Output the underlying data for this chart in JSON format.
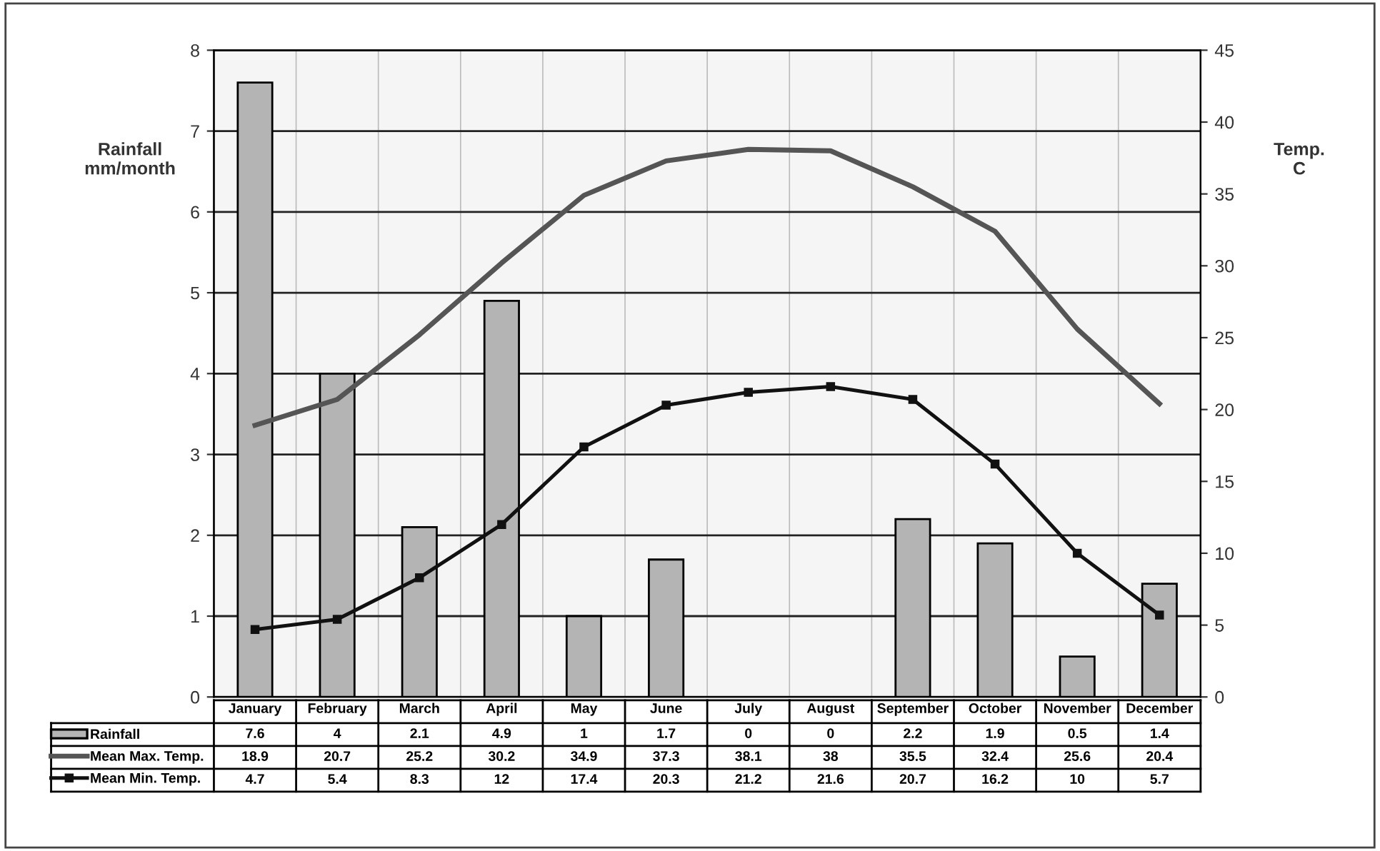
{
  "chart_data": {
    "type": "bar",
    "categories": [
      "January",
      "February",
      "March",
      "April",
      "May",
      "June",
      "July",
      "August",
      "September",
      "October",
      "November",
      "December"
    ],
    "ylabel": "Rainfall\nmm/month",
    "y2label": "Temp.\nC",
    "ylim": [
      0,
      8
    ],
    "yticks": [
      0,
      1,
      2,
      3,
      4,
      5,
      6,
      7,
      8
    ],
    "y2lim": [
      0,
      45
    ],
    "y2ticks": [
      0,
      5,
      10,
      15,
      20,
      25,
      30,
      35,
      40,
      45
    ],
    "grid": "y",
    "data_labels": true,
    "legend": "bottom",
    "series": [
      {
        "name": "Rainfall",
        "color": "#b4b4b4",
        "values": [
          7.6,
          4,
          2.1,
          4.9,
          1,
          1.7,
          0,
          0,
          2.2,
          1.9,
          0.5,
          1.4
        ]
      },
      {
        "name": "Mean Max. Temp.",
        "type": "line",
        "axis": "y2",
        "color": "#555555",
        "marker": "none",
        "values": [
          18.9,
          20.7,
          25.2,
          30.2,
          34.9,
          37.3,
          38.1,
          38,
          35.5,
          32.4,
          25.6,
          20.4
        ]
      },
      {
        "name": "Mean Min. Temp.",
        "type": "line",
        "axis": "y2",
        "color": "#111111",
        "marker": "square",
        "values": [
          4.7,
          5.4,
          8.3,
          12,
          17.4,
          20.3,
          21.2,
          21.6,
          20.7,
          16.2,
          10,
          5.7
        ]
      }
    ]
  }
}
